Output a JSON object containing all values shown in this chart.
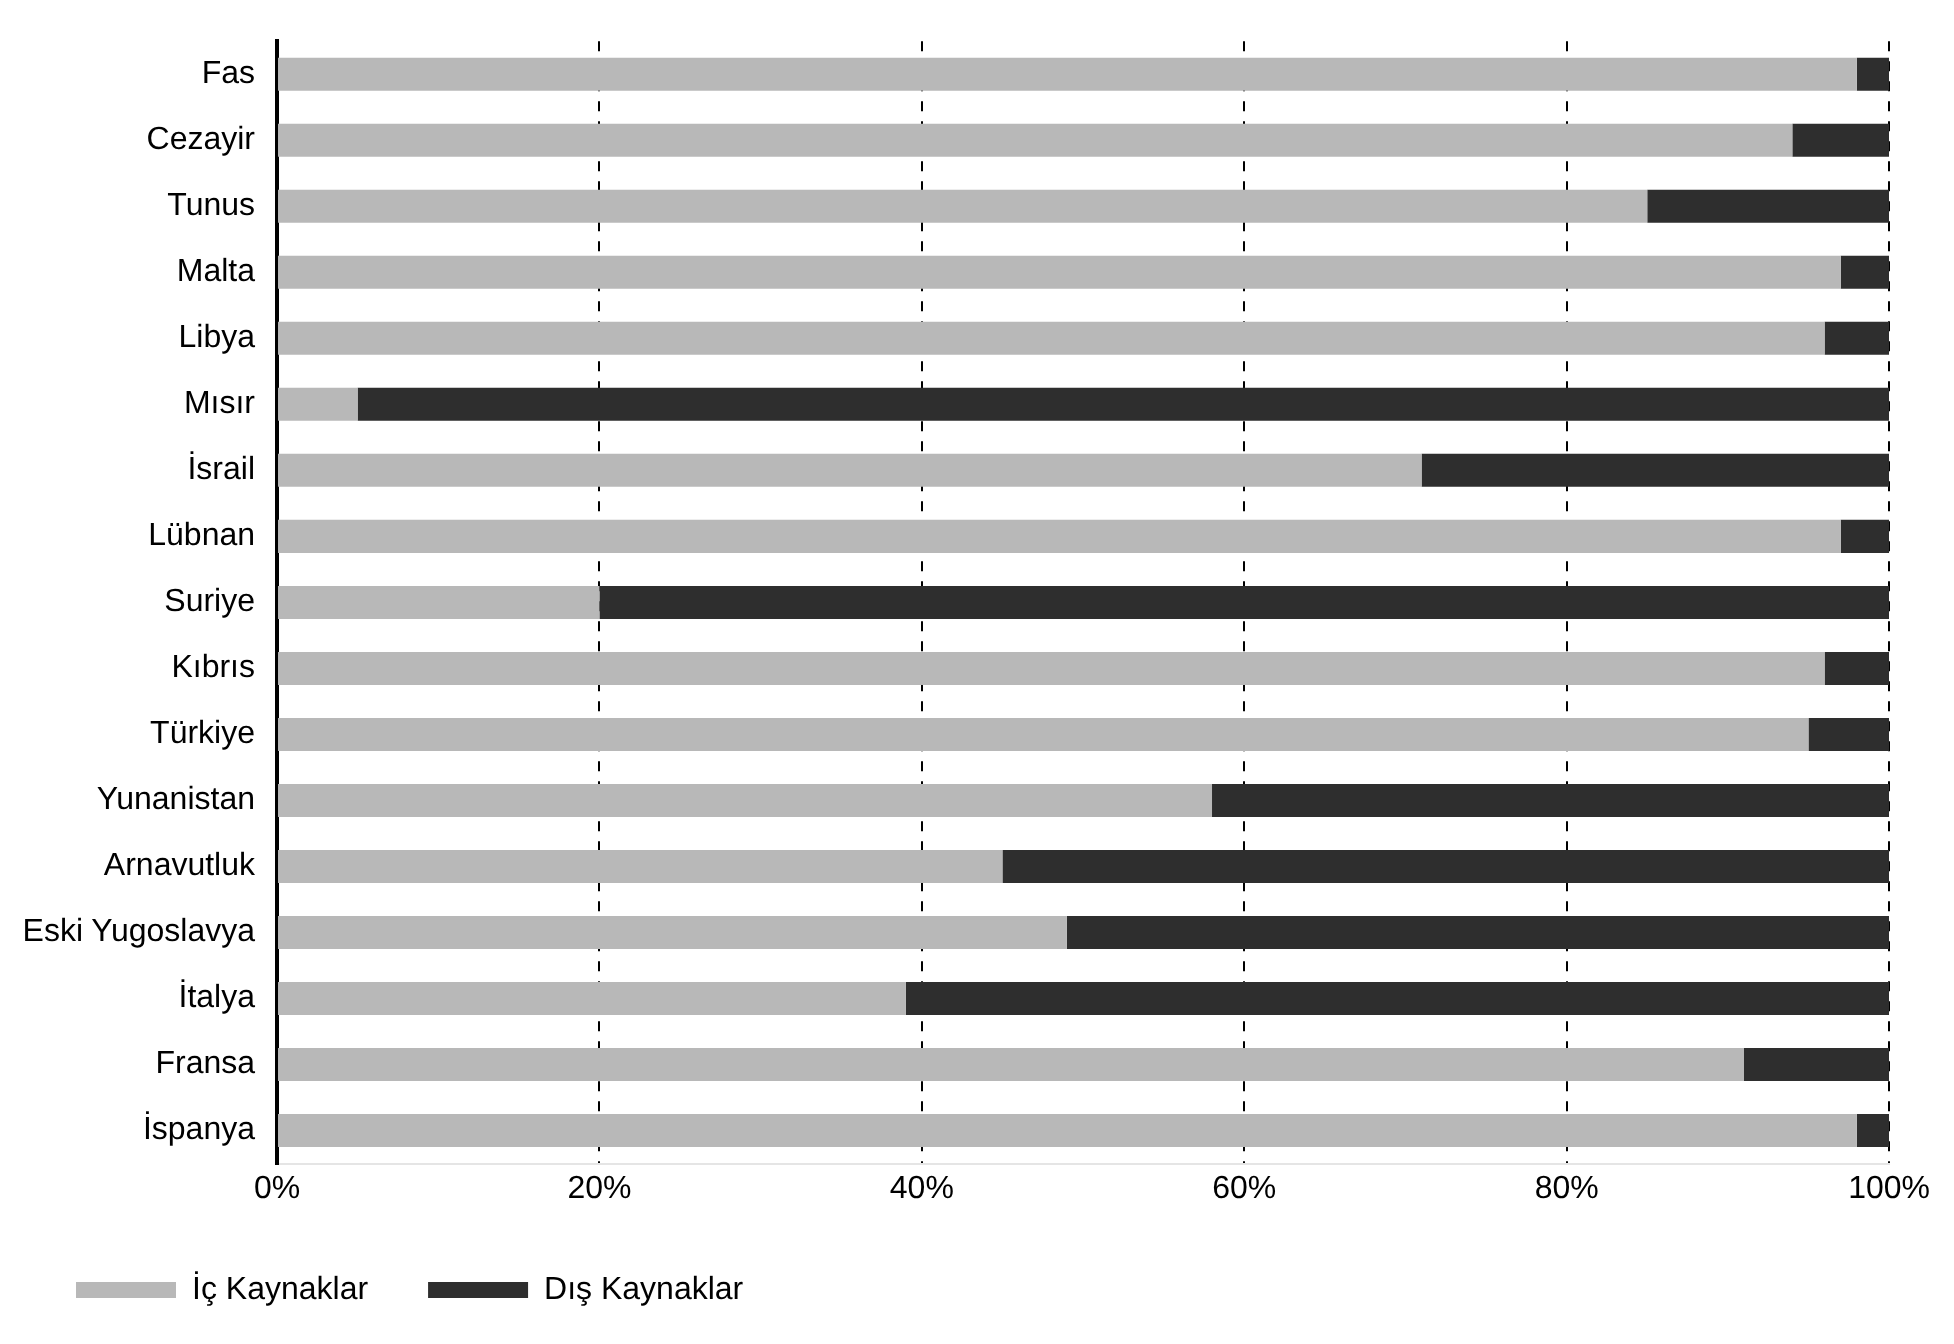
{
  "chart_data": {
    "type": "bar",
    "orientation": "horizontal",
    "stacked": true,
    "categories": [
      "Fas",
      "Cezayir",
      "Tunus",
      "Malta",
      "Libya",
      "Mısır",
      "İsrail",
      "Lübnan",
      "Suriye",
      "Kıbrıs",
      "Türkiye",
      "Yunanistan",
      "Arnavutluk",
      "Eski Yugoslavya",
      "İtalya",
      "Fransa",
      "İspanya"
    ],
    "series": [
      {
        "name": "İç Kaynaklar",
        "color": "#b8b8b8",
        "values": [
          98,
          94,
          85,
          97,
          96,
          5,
          71,
          97,
          20,
          96,
          95,
          58,
          45,
          49,
          39,
          91,
          98
        ]
      },
      {
        "name": "Dış Kaynaklar",
        "color": "#2e2e2e",
        "values": [
          2,
          6,
          15,
          3,
          4,
          95,
          29,
          3,
          80,
          4,
          5,
          42,
          55,
          51,
          61,
          9,
          2
        ]
      }
    ],
    "xlim": [
      0,
      100
    ],
    "xticks": [
      {
        "value": 0,
        "label": "0%"
      },
      {
        "value": 20,
        "label": "20%"
      },
      {
        "value": 40,
        "label": "40%"
      },
      {
        "value": 60,
        "label": "60%"
      },
      {
        "value": 80,
        "label": "80%"
      },
      {
        "value": 100,
        "label": "100%"
      }
    ],
    "grid": "x",
    "legend": "bottom"
  }
}
